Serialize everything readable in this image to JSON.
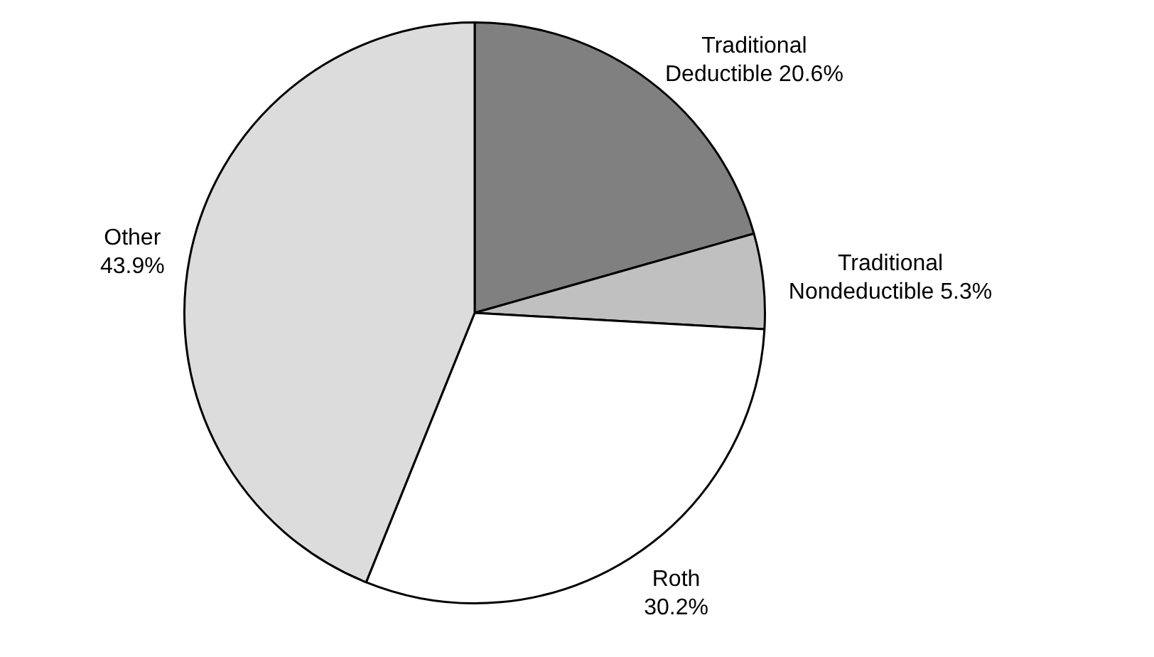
{
  "chart_data": {
    "type": "pie",
    "categories": [
      "Traditional Deductible",
      "Traditional Nondeductible",
      "Roth",
      "Other"
    ],
    "values": [
      20.6,
      5.3,
      30.2,
      43.9
    ],
    "value_labels": [
      "20.6%",
      "5.3%",
      "30.2%",
      "43.9%"
    ],
    "colors": [
      "#808080",
      "#c0c0c0",
      "#ffffff",
      "#dcdcdc"
    ],
    "legend": false
  }
}
